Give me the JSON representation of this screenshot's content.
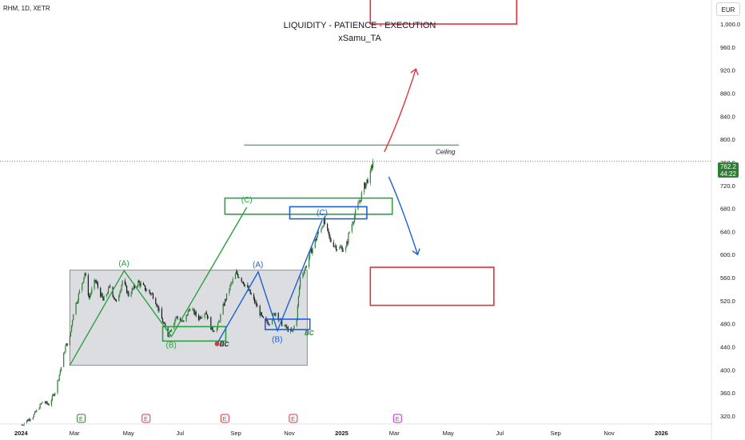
{
  "header": {
    "symbol": "RHM, 1D, XETR",
    "title": "LIQUIDITY - PATIENCE - EXECUTION",
    "subtitle": "xSamu_TA",
    "currency": "EUR"
  },
  "price_tag": {
    "price": "762.2",
    "countdown": "44:22",
    "color": "#2e7d32"
  },
  "colors": {
    "up": "#2e7d32",
    "down": "#131722",
    "green": "#2ea043",
    "blue": "#1f5fd6",
    "red": "#e0323e"
  },
  "chart_data": {
    "type": "candlestick",
    "series_name": "RHM",
    "x_ticks": [
      "2024",
      "Mar",
      "May",
      "Jul",
      "Sep",
      "Nov",
      "2025",
      "Mar",
      "May",
      "Jul",
      "Sep",
      "Nov",
      "2026"
    ],
    "y_ticks": [
      "320.0",
      "360.0",
      "400.0",
      "440.0",
      "480.0",
      "520.0",
      "560.0",
      "600.0",
      "640.0",
      "680.0",
      "720.0",
      "760.0",
      "800.0",
      "840.0",
      "880.0",
      "920.0",
      "960.0",
      "1,000.0"
    ],
    "ylim": [
      305,
      1055
    ],
    "xlim": [
      "2024-01-01",
      "2026-01-20"
    ],
    "price_path": [
      [
        "2024-01-02",
        305
      ],
      [
        "2024-01-15",
        320
      ],
      [
        "2024-01-26",
        345
      ],
      [
        "2024-02-02",
        340
      ],
      [
        "2024-02-09",
        362
      ],
      [
        "2024-02-16",
        405
      ],
      [
        "2024-02-21",
        440
      ],
      [
        "2024-02-26",
        455
      ],
      [
        "2024-03-01",
        500
      ],
      [
        "2024-03-07",
        530
      ],
      [
        "2024-03-14",
        568
      ],
      [
        "2024-03-19",
        525
      ],
      [
        "2024-03-26",
        555
      ],
      [
        "2024-04-04",
        520
      ],
      [
        "2024-04-12",
        545
      ],
      [
        "2024-04-19",
        515
      ],
      [
        "2024-04-26",
        555
      ],
      [
        "2024-05-03",
        530
      ],
      [
        "2024-05-14",
        552
      ],
      [
        "2024-05-24",
        538
      ],
      [
        "2024-06-01",
        528
      ],
      [
        "2024-06-10",
        488
      ],
      [
        "2024-06-17",
        460
      ],
      [
        "2024-06-26",
        492
      ],
      [
        "2024-07-05",
        482
      ],
      [
        "2024-07-12",
        508
      ],
      [
        "2024-07-22",
        490
      ],
      [
        "2024-07-30",
        502
      ],
      [
        "2024-08-06",
        470
      ],
      [
        "2024-08-12",
        472
      ],
      [
        "2024-08-20",
        515
      ],
      [
        "2024-08-27",
        545
      ],
      [
        "2024-09-03",
        568
      ],
      [
        "2024-09-10",
        555
      ],
      [
        "2024-09-18",
        535
      ],
      [
        "2024-09-26",
        512
      ],
      [
        "2024-10-03",
        488
      ],
      [
        "2024-10-10",
        482
      ],
      [
        "2024-10-18",
        500
      ],
      [
        "2024-10-25",
        480
      ],
      [
        "2024-11-01",
        470
      ],
      [
        "2024-11-06",
        465
      ],
      [
        "2024-11-11",
        492
      ],
      [
        "2024-11-15",
        560
      ],
      [
        "2024-11-21",
        578
      ],
      [
        "2024-11-28",
        608
      ],
      [
        "2024-12-05",
        635
      ],
      [
        "2024-12-12",
        658
      ],
      [
        "2024-12-19",
        625
      ],
      [
        "2024-12-27",
        612
      ],
      [
        "2025-01-06",
        610
      ],
      [
        "2025-01-10",
        640
      ],
      [
        "2025-01-16",
        668
      ],
      [
        "2025-01-21",
        690
      ],
      [
        "2025-01-27",
        718
      ],
      [
        "2025-02-03",
        740
      ],
      [
        "2025-02-06",
        762
      ]
    ],
    "range_box": {
      "x": [
        "2024-02-26",
        "2024-11-23"
      ],
      "y": [
        408,
        573
      ]
    },
    "ceiling": {
      "label": "Ceiling",
      "price": 790,
      "x": [
        "2024-09-12",
        "2025-05-15"
      ]
    },
    "last_price_line": 762.2,
    "wave_green": {
      "points": [
        [
          "2024-02-26",
          408
        ],
        [
          "2024-04-28",
          572
        ],
        [
          "2024-06-21",
          458
        ],
        [
          "2024-09-15",
          682
        ]
      ],
      "labels": [
        "(A)",
        "(B)",
        "(C)"
      ],
      "zones": [
        {
          "x": [
            "2024-06-11",
            "2024-08-22"
          ],
          "y": [
            450,
            475
          ]
        },
        {
          "x": [
            "2024-08-21",
            "2025-02-28"
          ],
          "y": [
            670,
            698
          ]
        }
      ]
    },
    "wave_blue": {
      "points": [
        [
          "2024-08-13",
          448
        ],
        [
          "2024-09-28",
          570
        ],
        [
          "2024-10-20",
          468
        ],
        [
          "2024-12-10",
          660
        ]
      ],
      "labels": [
        "(A)",
        "(B)",
        "(C)"
      ],
      "zones": [
        {
          "x": [
            "2024-10-06",
            "2024-11-26"
          ],
          "y": [
            470,
            488
          ]
        },
        {
          "x": [
            "2024-11-03",
            "2025-01-30"
          ],
          "y": [
            662,
            683
          ]
        }
      ]
    },
    "bc_labels": [
      {
        "text": "BC",
        "x": "2024-08-15",
        "y": 441,
        "color": "#131722"
      },
      {
        "text": "BC",
        "x": "2024-11-20",
        "y": 460,
        "color": "#2e7d32"
      }
    ],
    "arrow_up": {
      "color": "#e0323e",
      "points": [
        [
          "2025-02-19",
          778
        ],
        [
          "2025-03-10",
          840
        ],
        [
          "2025-03-27",
          922
        ]
      ]
    },
    "arrow_down": {
      "color": "#1f5fd6",
      "points": [
        [
          "2025-02-24",
          735
        ],
        [
          "2025-03-12",
          680
        ],
        [
          "2025-03-29",
          600
        ]
      ]
    },
    "red_boxes": [
      {
        "x": [
          "2025-02-03",
          "2025-07-20"
        ],
        "y": [
          1000,
          1060
        ]
      },
      {
        "x": [
          "2025-02-03",
          "2025-06-24"
        ],
        "y": [
          512,
          578
        ]
      }
    ],
    "events": [
      {
        "letter": "E",
        "x": "2024-03-10",
        "color": "#2e7d32"
      },
      {
        "letter": "E",
        "x": "2024-05-23",
        "color": "#e0323e"
      },
      {
        "letter": "E",
        "x": "2024-08-21",
        "color": "#e0323e"
      },
      {
        "letter": "E",
        "x": "2024-11-07",
        "color": "#e0323e"
      },
      {
        "letter": "E",
        "x": "2025-03-06",
        "color": "#c026d3"
      }
    ]
  }
}
